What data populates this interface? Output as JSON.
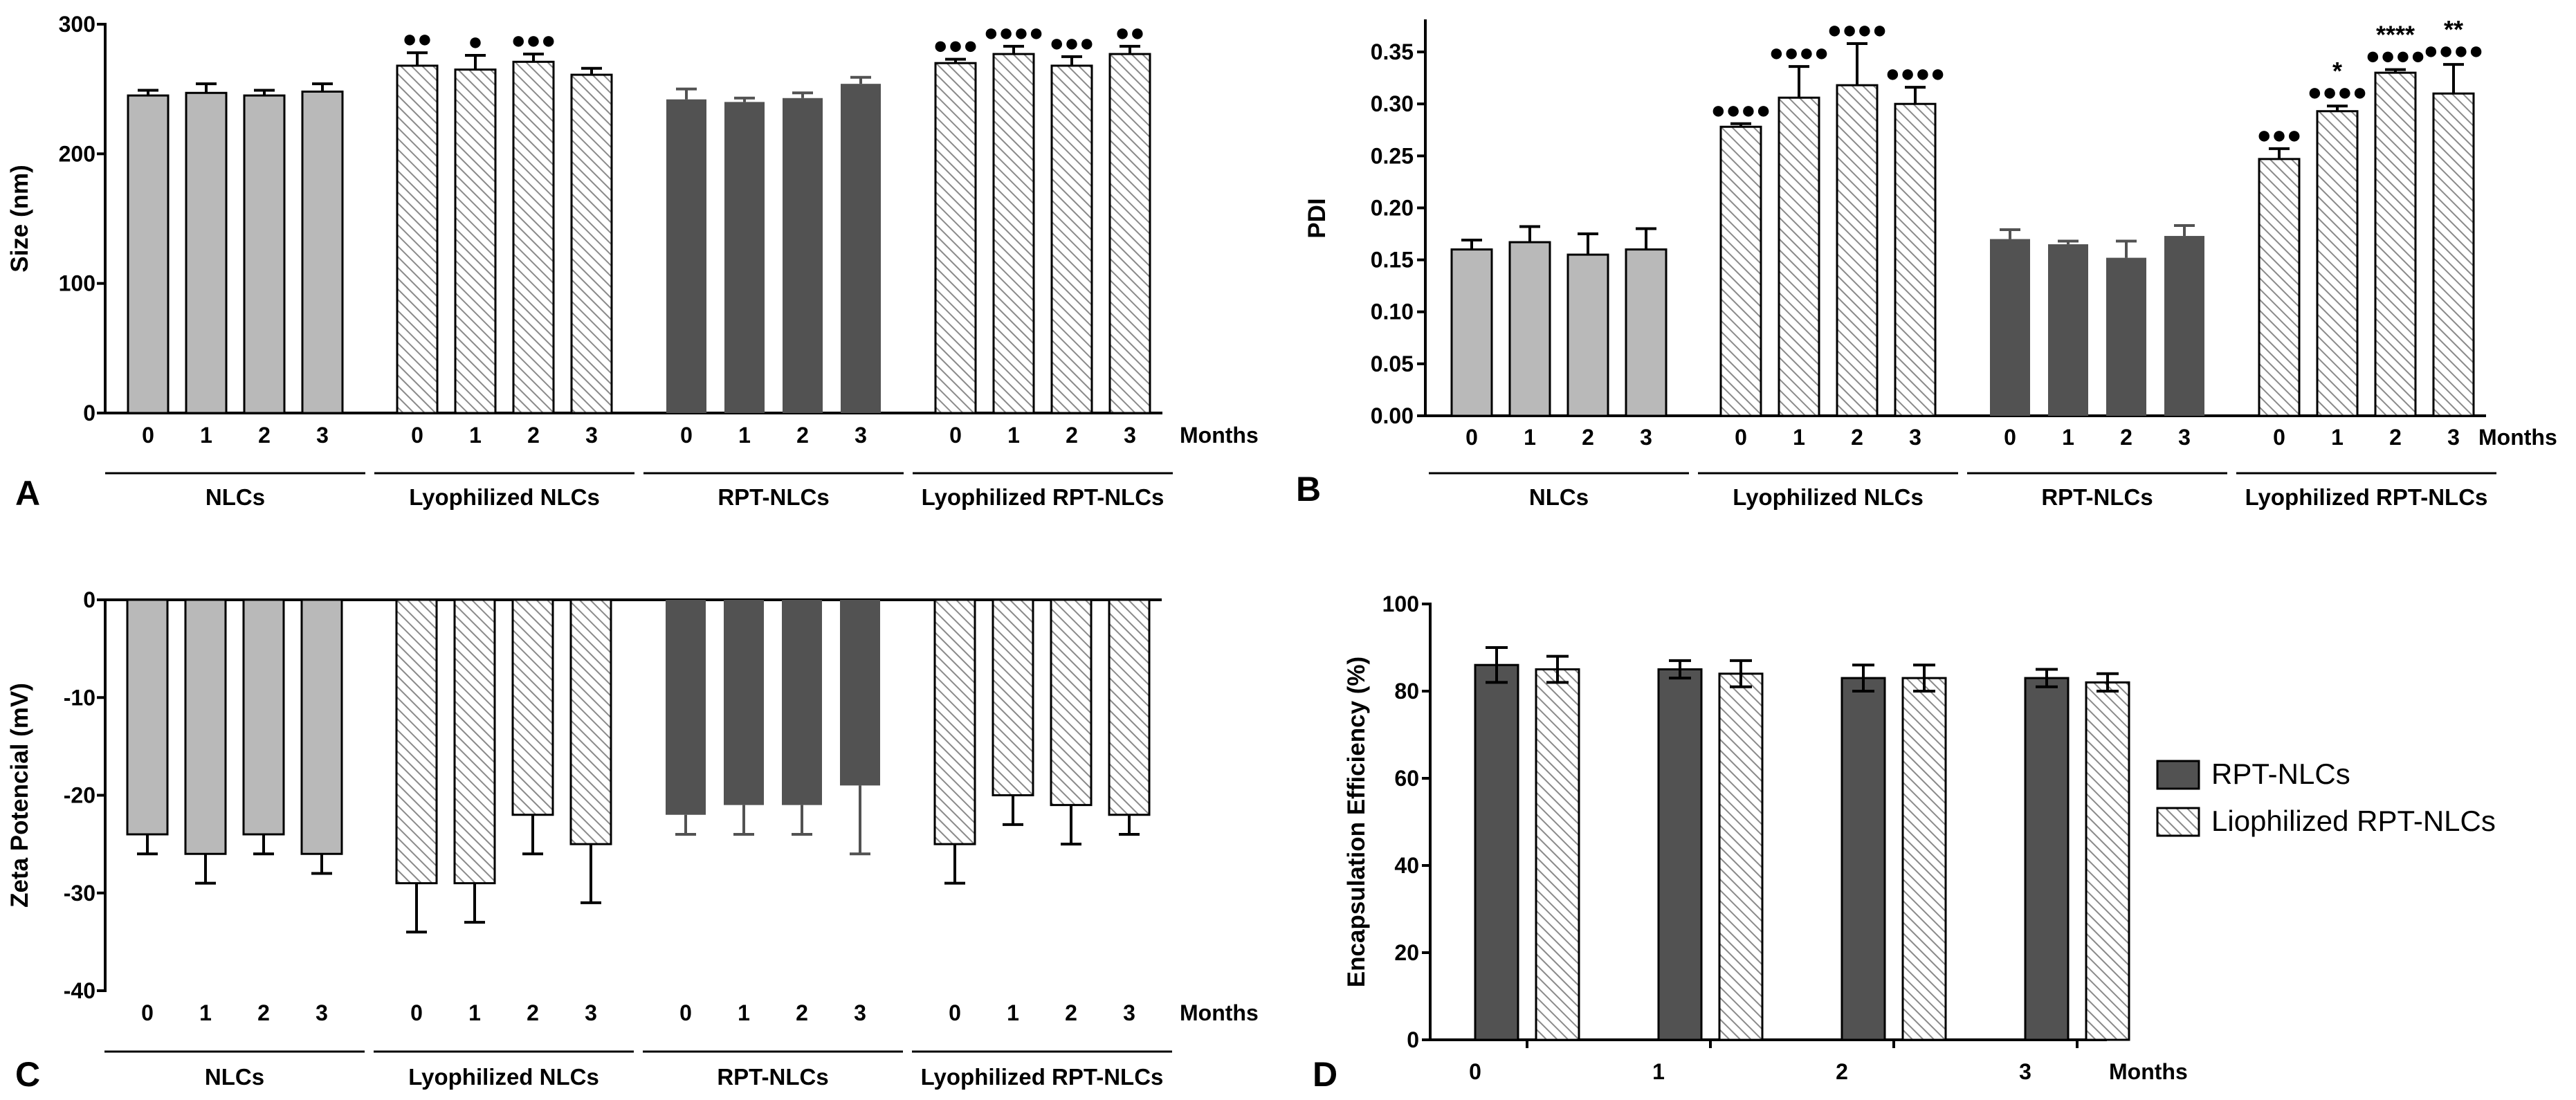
{
  "chart_data": [
    {
      "panel": "A",
      "type": "bar",
      "ylabel": "Size (nm)",
      "xlabel_suffix": "Months",
      "ylim": [
        0,
        300
      ],
      "yticks": [
        "0",
        "100",
        "200",
        "300"
      ],
      "grid": false,
      "groups": [
        {
          "label": "NLCs",
          "style": "light",
          "bars": [
            {
              "month": "0",
              "value": 245,
              "err": 4,
              "sig": ""
            },
            {
              "month": "1",
              "value": 247,
              "err": 7,
              "sig": ""
            },
            {
              "month": "2",
              "value": 245,
              "err": 4,
              "sig": ""
            },
            {
              "month": "3",
              "value": 248,
              "err": 6,
              "sig": ""
            }
          ]
        },
        {
          "label": "Lyophilized NLCs",
          "style": "hatch",
          "bars": [
            {
              "month": "0",
              "value": 268,
              "err": 10,
              "sig": "●●"
            },
            {
              "month": "1",
              "value": 265,
              "err": 11,
              "sig": "●"
            },
            {
              "month": "2",
              "value": 271,
              "err": 6,
              "sig": "●●●"
            },
            {
              "month": "3",
              "value": 261,
              "err": 5,
              "sig": ""
            }
          ]
        },
        {
          "label": "RPT-NLCs",
          "style": "dark",
          "bars": [
            {
              "month": "0",
              "value": 242,
              "err": 8,
              "sig": ""
            },
            {
              "month": "1",
              "value": 240,
              "err": 3,
              "sig": ""
            },
            {
              "month": "2",
              "value": 243,
              "err": 4,
              "sig": ""
            },
            {
              "month": "3",
              "value": 254,
              "err": 5,
              "sig": ""
            }
          ]
        },
        {
          "label": "Lyophilized RPT-NLCs",
          "style": "hatch",
          "bars": [
            {
              "month": "0",
              "value": 270,
              "err": 3,
              "sig": "●●●"
            },
            {
              "month": "1",
              "value": 277,
              "err": 6,
              "sig": "●●●●"
            },
            {
              "month": "2",
              "value": 268,
              "err": 7,
              "sig": "●●●"
            },
            {
              "month": "3",
              "value": 277,
              "err": 6,
              "sig": "●●"
            }
          ]
        }
      ]
    },
    {
      "panel": "B",
      "type": "bar",
      "ylabel": "PDI",
      "xlabel_suffix": "Months",
      "ylim": [
        0,
        0.38
      ],
      "yticks": [
        "0.00",
        "0.05",
        "0.10",
        "0.15",
        "0.20",
        "0.25",
        "0.30",
        "0.35"
      ],
      "grid": false,
      "groups": [
        {
          "label": "NLCs",
          "style": "light",
          "bars": [
            {
              "month": "0",
              "value": 0.16,
              "err": 0.009,
              "sig": ""
            },
            {
              "month": "1",
              "value": 0.167,
              "err": 0.015,
              "sig": ""
            },
            {
              "month": "2",
              "value": 0.155,
              "err": 0.02,
              "sig": ""
            },
            {
              "month": "3",
              "value": 0.16,
              "err": 0.02,
              "sig": ""
            }
          ]
        },
        {
          "label": "Lyophilized NLCs",
          "style": "hatch",
          "bars": [
            {
              "month": "0",
              "value": 0.278,
              "err": 0.003,
              "sig": "●●●●"
            },
            {
              "month": "1",
              "value": 0.306,
              "err": 0.03,
              "sig": "●●●●"
            },
            {
              "month": "2",
              "value": 0.318,
              "err": 0.04,
              "sig": "●●●●"
            },
            {
              "month": "3",
              "value": 0.3,
              "err": 0.016,
              "sig": "●●●●"
            }
          ]
        },
        {
          "label": "RPT-NLCs",
          "style": "dark",
          "bars": [
            {
              "month": "0",
              "value": 0.17,
              "err": 0.009,
              "sig": ""
            },
            {
              "month": "1",
              "value": 0.165,
              "err": 0.003,
              "sig": ""
            },
            {
              "month": "2",
              "value": 0.152,
              "err": 0.016,
              "sig": ""
            },
            {
              "month": "3",
              "value": 0.173,
              "err": 0.01,
              "sig": ""
            }
          ]
        },
        {
          "label": "Lyophilized RPT-NLCs",
          "style": "hatch",
          "bars": [
            {
              "month": "0",
              "value": 0.247,
              "err": 0.01,
              "sig": "●●●"
            },
            {
              "month": "1",
              "value": 0.293,
              "err": 0.005,
              "sig": "*\n●●●●"
            },
            {
              "month": "2",
              "value": 0.33,
              "err": 0.003,
              "sig": "****\n●●●●"
            },
            {
              "month": "3",
              "value": 0.31,
              "err": 0.028,
              "sig": "**\n●●●●"
            }
          ]
        }
      ]
    },
    {
      "panel": "C",
      "type": "bar",
      "ylabel": "Zeta Potencial (mV)",
      "xlabel_suffix": "Months",
      "ylim": [
        -40,
        0
      ],
      "yticks": [
        "-40",
        "-30",
        "-20",
        "-10",
        "0"
      ],
      "grid": false,
      "groups": [
        {
          "label": "NLCs",
          "style": "light",
          "bars": [
            {
              "month": "0",
              "value": -24,
              "err": 2,
              "sig": ""
            },
            {
              "month": "1",
              "value": -26,
              "err": 3,
              "sig": ""
            },
            {
              "month": "2",
              "value": -24,
              "err": 2,
              "sig": ""
            },
            {
              "month": "3",
              "value": -26,
              "err": 2,
              "sig": ""
            }
          ]
        },
        {
          "label": "Lyophilized NLCs",
          "style": "hatch",
          "bars": [
            {
              "month": "0",
              "value": -29,
              "err": 5,
              "sig": ""
            },
            {
              "month": "1",
              "value": -29,
              "err": 4,
              "sig": ""
            },
            {
              "month": "2",
              "value": -22,
              "err": 4,
              "sig": ""
            },
            {
              "month": "3",
              "value": -25,
              "err": 6,
              "sig": ""
            }
          ]
        },
        {
          "label": "RPT-NLCs",
          "style": "dark",
          "bars": [
            {
              "month": "0",
              "value": -22,
              "err": 2,
              "sig": ""
            },
            {
              "month": "1",
              "value": -21,
              "err": 3,
              "sig": ""
            },
            {
              "month": "2",
              "value": -21,
              "err": 3,
              "sig": ""
            },
            {
              "month": "3",
              "value": -19,
              "err": 7,
              "sig": ""
            }
          ]
        },
        {
          "label": "Lyophilized RPT-NLCs",
          "style": "hatch",
          "bars": [
            {
              "month": "0",
              "value": -25,
              "err": 4,
              "sig": ""
            },
            {
              "month": "1",
              "value": -20,
              "err": 3,
              "sig": ""
            },
            {
              "month": "2",
              "value": -21,
              "err": 4,
              "sig": ""
            },
            {
              "month": "3",
              "value": -22,
              "err": 2,
              "sig": ""
            }
          ]
        }
      ]
    },
    {
      "panel": "D",
      "type": "bar",
      "ylabel": "Encapsulation Efficiency (%)",
      "xlabel_suffix": "Months",
      "ylim": [
        0,
        100
      ],
      "yticks": [
        "0",
        "20",
        "40",
        "60",
        "80",
        "100"
      ],
      "grid": false,
      "legend_position": "right",
      "categories": [
        "0",
        "1",
        "2",
        "3"
      ],
      "series": [
        {
          "name": "RPT-NLCs",
          "style": "dark",
          "values": [
            86,
            85,
            83,
            83
          ],
          "err": [
            4,
            2,
            3,
            2
          ]
        },
        {
          "name": "Liophilized RPT-NLCs",
          "style": "hatch",
          "values": [
            85,
            84,
            83,
            82
          ],
          "err": [
            3,
            3,
            3,
            2
          ]
        }
      ]
    }
  ]
}
